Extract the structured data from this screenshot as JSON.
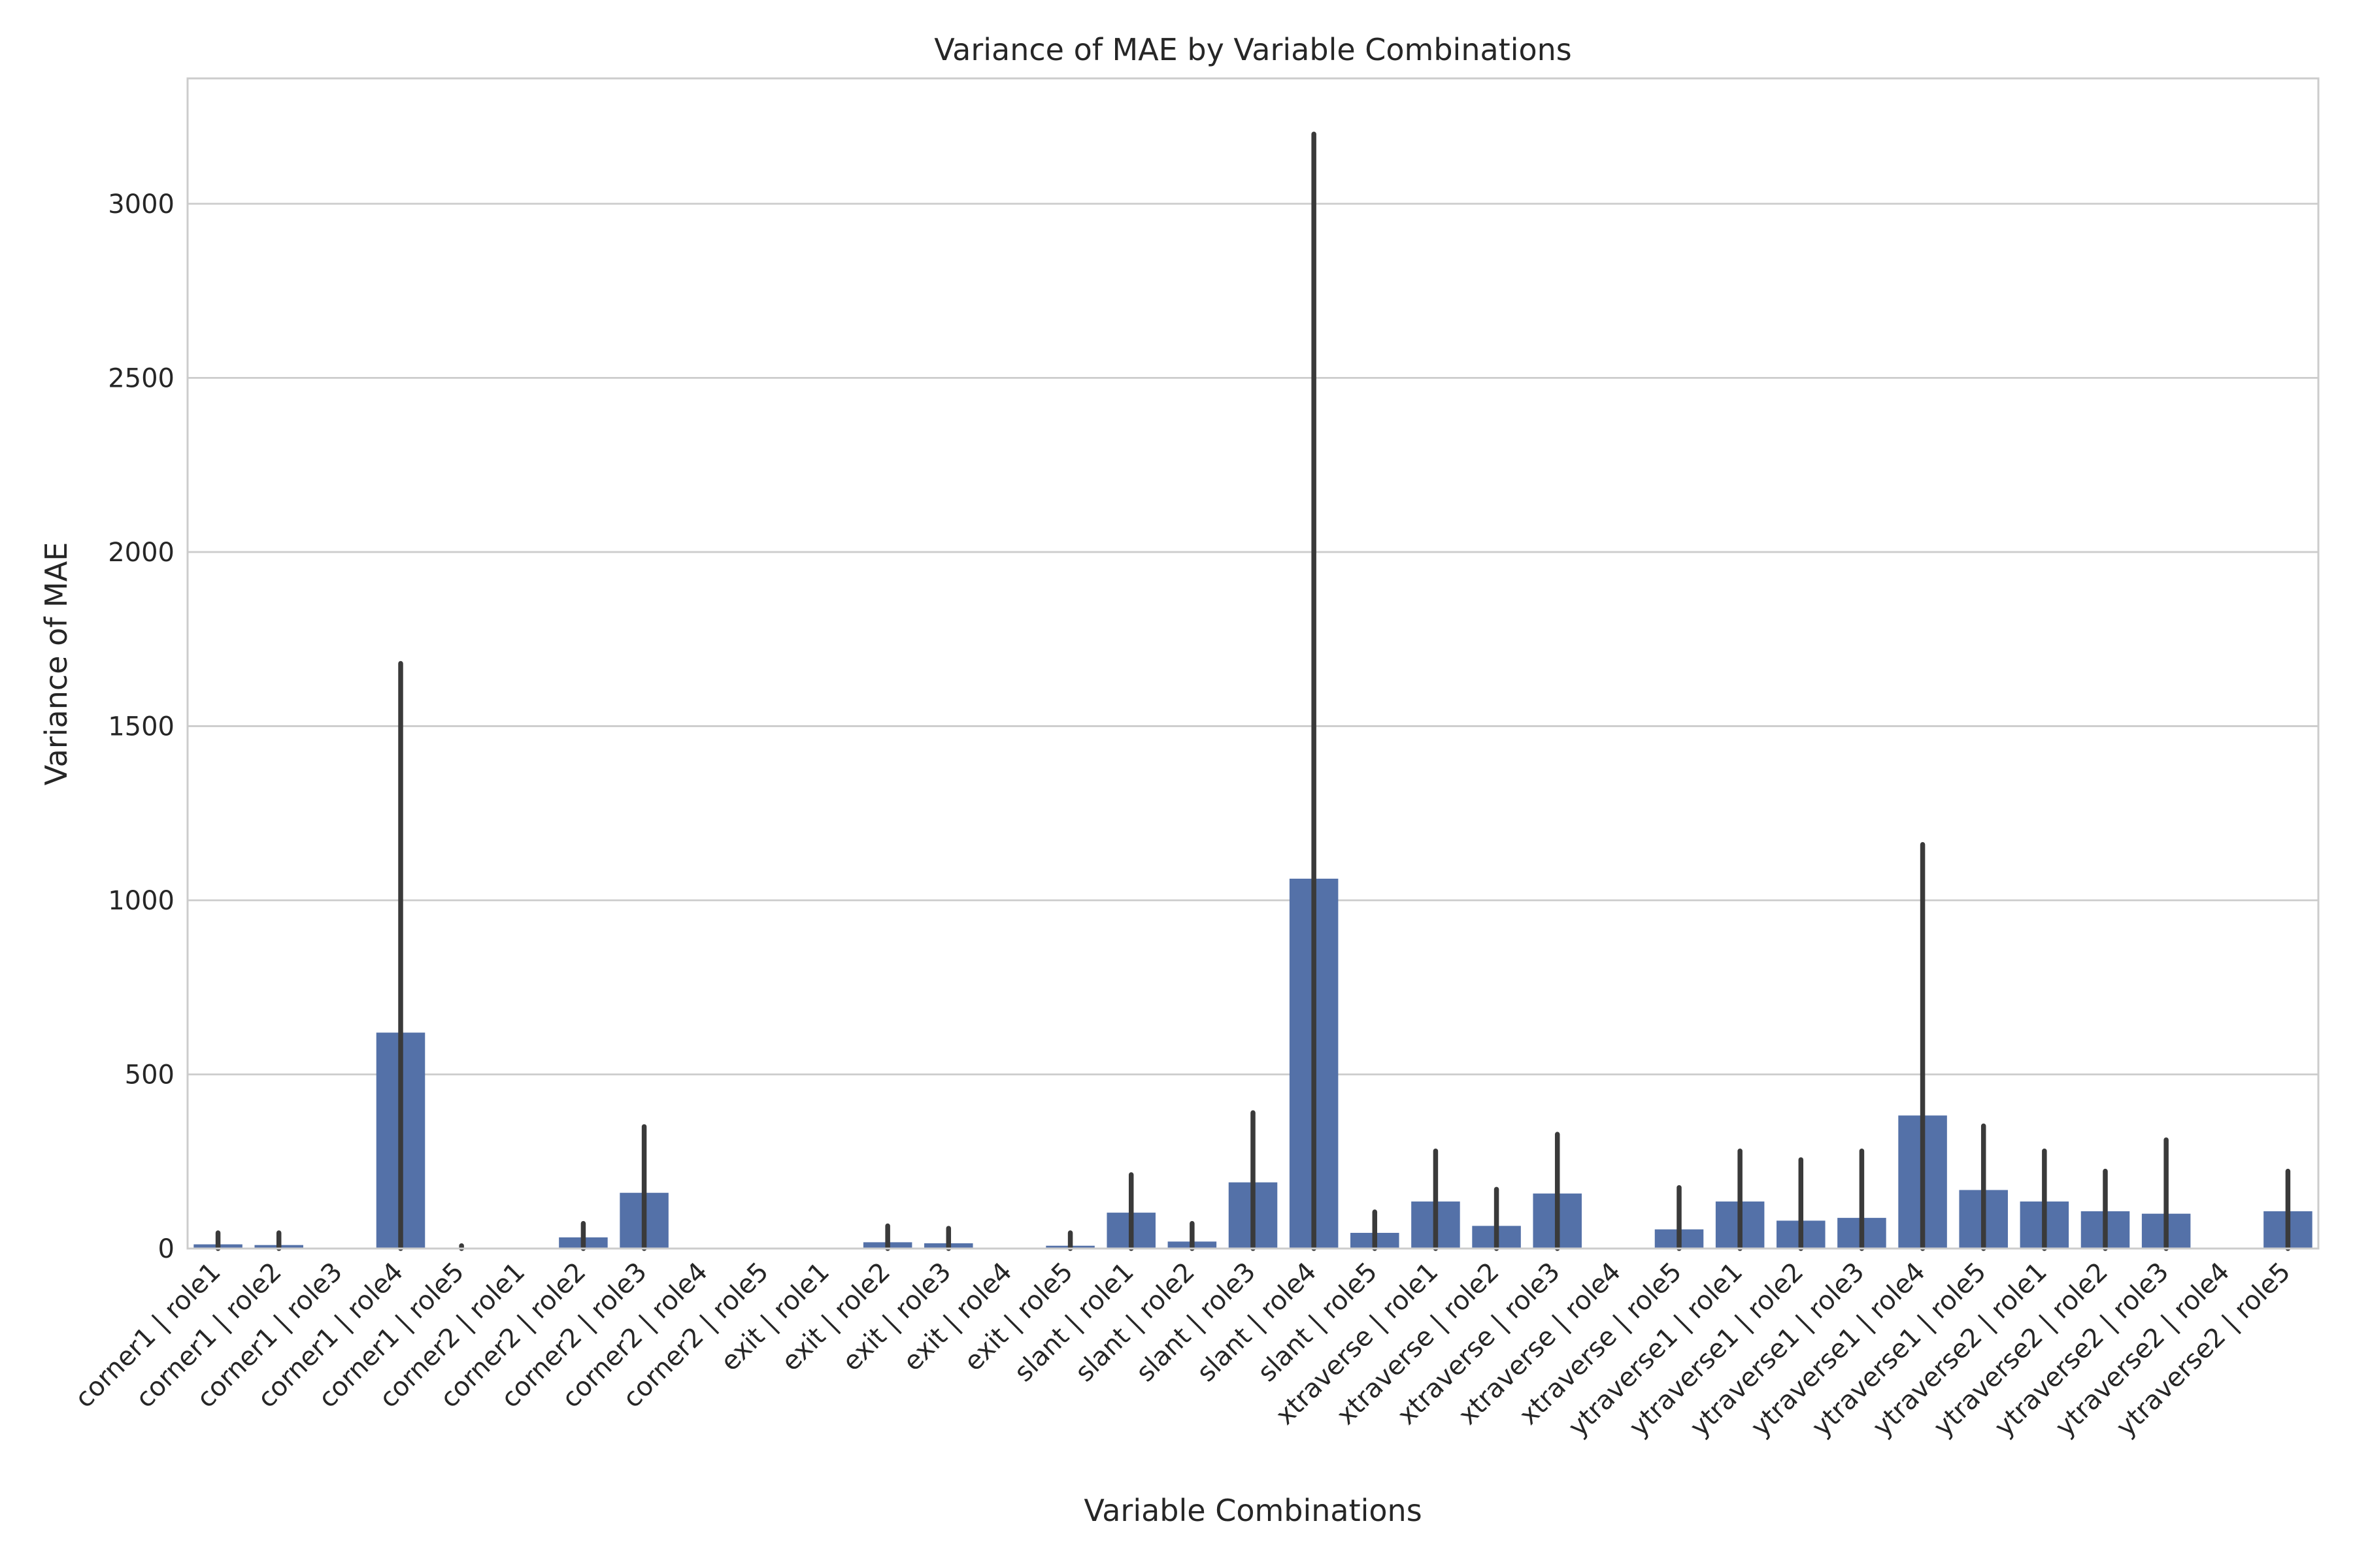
{
  "chart_data": {
    "type": "bar",
    "title": "Variance of MAE by Variable Combinations",
    "xlabel": "Variable Combinations",
    "ylabel": "Variance of MAE",
    "ylim": [
      0,
      3360
    ],
    "yticks": [
      0,
      500,
      1000,
      1500,
      2000,
      2500,
      3000
    ],
    "grid": "horizontal",
    "bar_color": "#5471a8",
    "errorbar_color": "#3a3a3a",
    "categories": [
      "corner1 | role1",
      "corner1 | role2",
      "corner1 | role3",
      "corner1 | role4",
      "corner1 | role5",
      "corner2 | role1",
      "corner2 | role2",
      "corner2 | role3",
      "corner2 | role4",
      "corner2 | role5",
      "exit | role1",
      "exit | role2",
      "exit | role3",
      "exit | role4",
      "exit | role5",
      "slant | role1",
      "slant | role2",
      "slant | role3",
      "slant | role4",
      "slant | role5",
      "xtraverse | role1",
      "xtraverse | role2",
      "xtraverse | role3",
      "xtraverse | role4",
      "xtraverse | role5",
      "ytraverse1 | role1",
      "ytraverse1 | role2",
      "ytraverse1 | role3",
      "ytraverse1 | role4",
      "ytraverse1 | role5",
      "ytraverse2 | role1",
      "ytraverse2 | role2",
      "ytraverse2 | role3",
      "ytraverse2 | role4",
      "ytraverse2 | role5"
    ],
    "values": [
      12,
      10,
      0,
      620,
      1,
      0,
      32,
      160,
      0,
      0,
      0,
      18,
      15,
      0,
      8,
      103,
      20,
      190,
      1062,
      45,
      135,
      65,
      158,
      0,
      55,
      135,
      80,
      88,
      382,
      168,
      135,
      107,
      100,
      0,
      107
    ],
    "error_bars": [
      [
        0,
        45
      ],
      [
        0,
        45
      ],
      [
        0,
        0
      ],
      [
        0,
        1680
      ],
      [
        0,
        8
      ],
      [
        0,
        0
      ],
      [
        0,
        72
      ],
      [
        0,
        350
      ],
      [
        0,
        0
      ],
      [
        0,
        0
      ],
      [
        0,
        0
      ],
      [
        0,
        65
      ],
      [
        0,
        58
      ],
      [
        0,
        0
      ],
      [
        0,
        45
      ],
      [
        0,
        212
      ],
      [
        0,
        72
      ],
      [
        0,
        390
      ],
      [
        0,
        3200
      ],
      [
        0,
        105
      ],
      [
        0,
        280
      ],
      [
        0,
        170
      ],
      [
        0,
        328
      ],
      [
        0,
        0
      ],
      [
        0,
        175
      ],
      [
        0,
        280
      ],
      [
        0,
        255
      ],
      [
        0,
        280
      ],
      [
        0,
        1160
      ],
      [
        0,
        352
      ],
      [
        0,
        280
      ],
      [
        0,
        222
      ],
      [
        0,
        312
      ],
      [
        0,
        0
      ],
      [
        0,
        222
      ]
    ]
  }
}
